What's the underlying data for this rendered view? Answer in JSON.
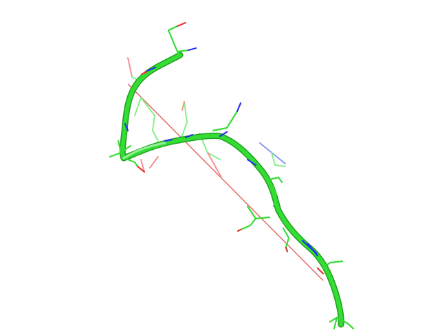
{
  "scene": {
    "background": "#ffffff",
    "render_style": "cartoon tube with stick side chains",
    "colors": {
      "carbon": "#33dd33",
      "carbon_light": "#88ee88",
      "oxygen": "#ee3333",
      "oxygen_light": "#f29090",
      "nitrogen": "#2233ee",
      "nitrogen_light": "#8899ee",
      "axis_line": "#e06060"
    }
  }
}
